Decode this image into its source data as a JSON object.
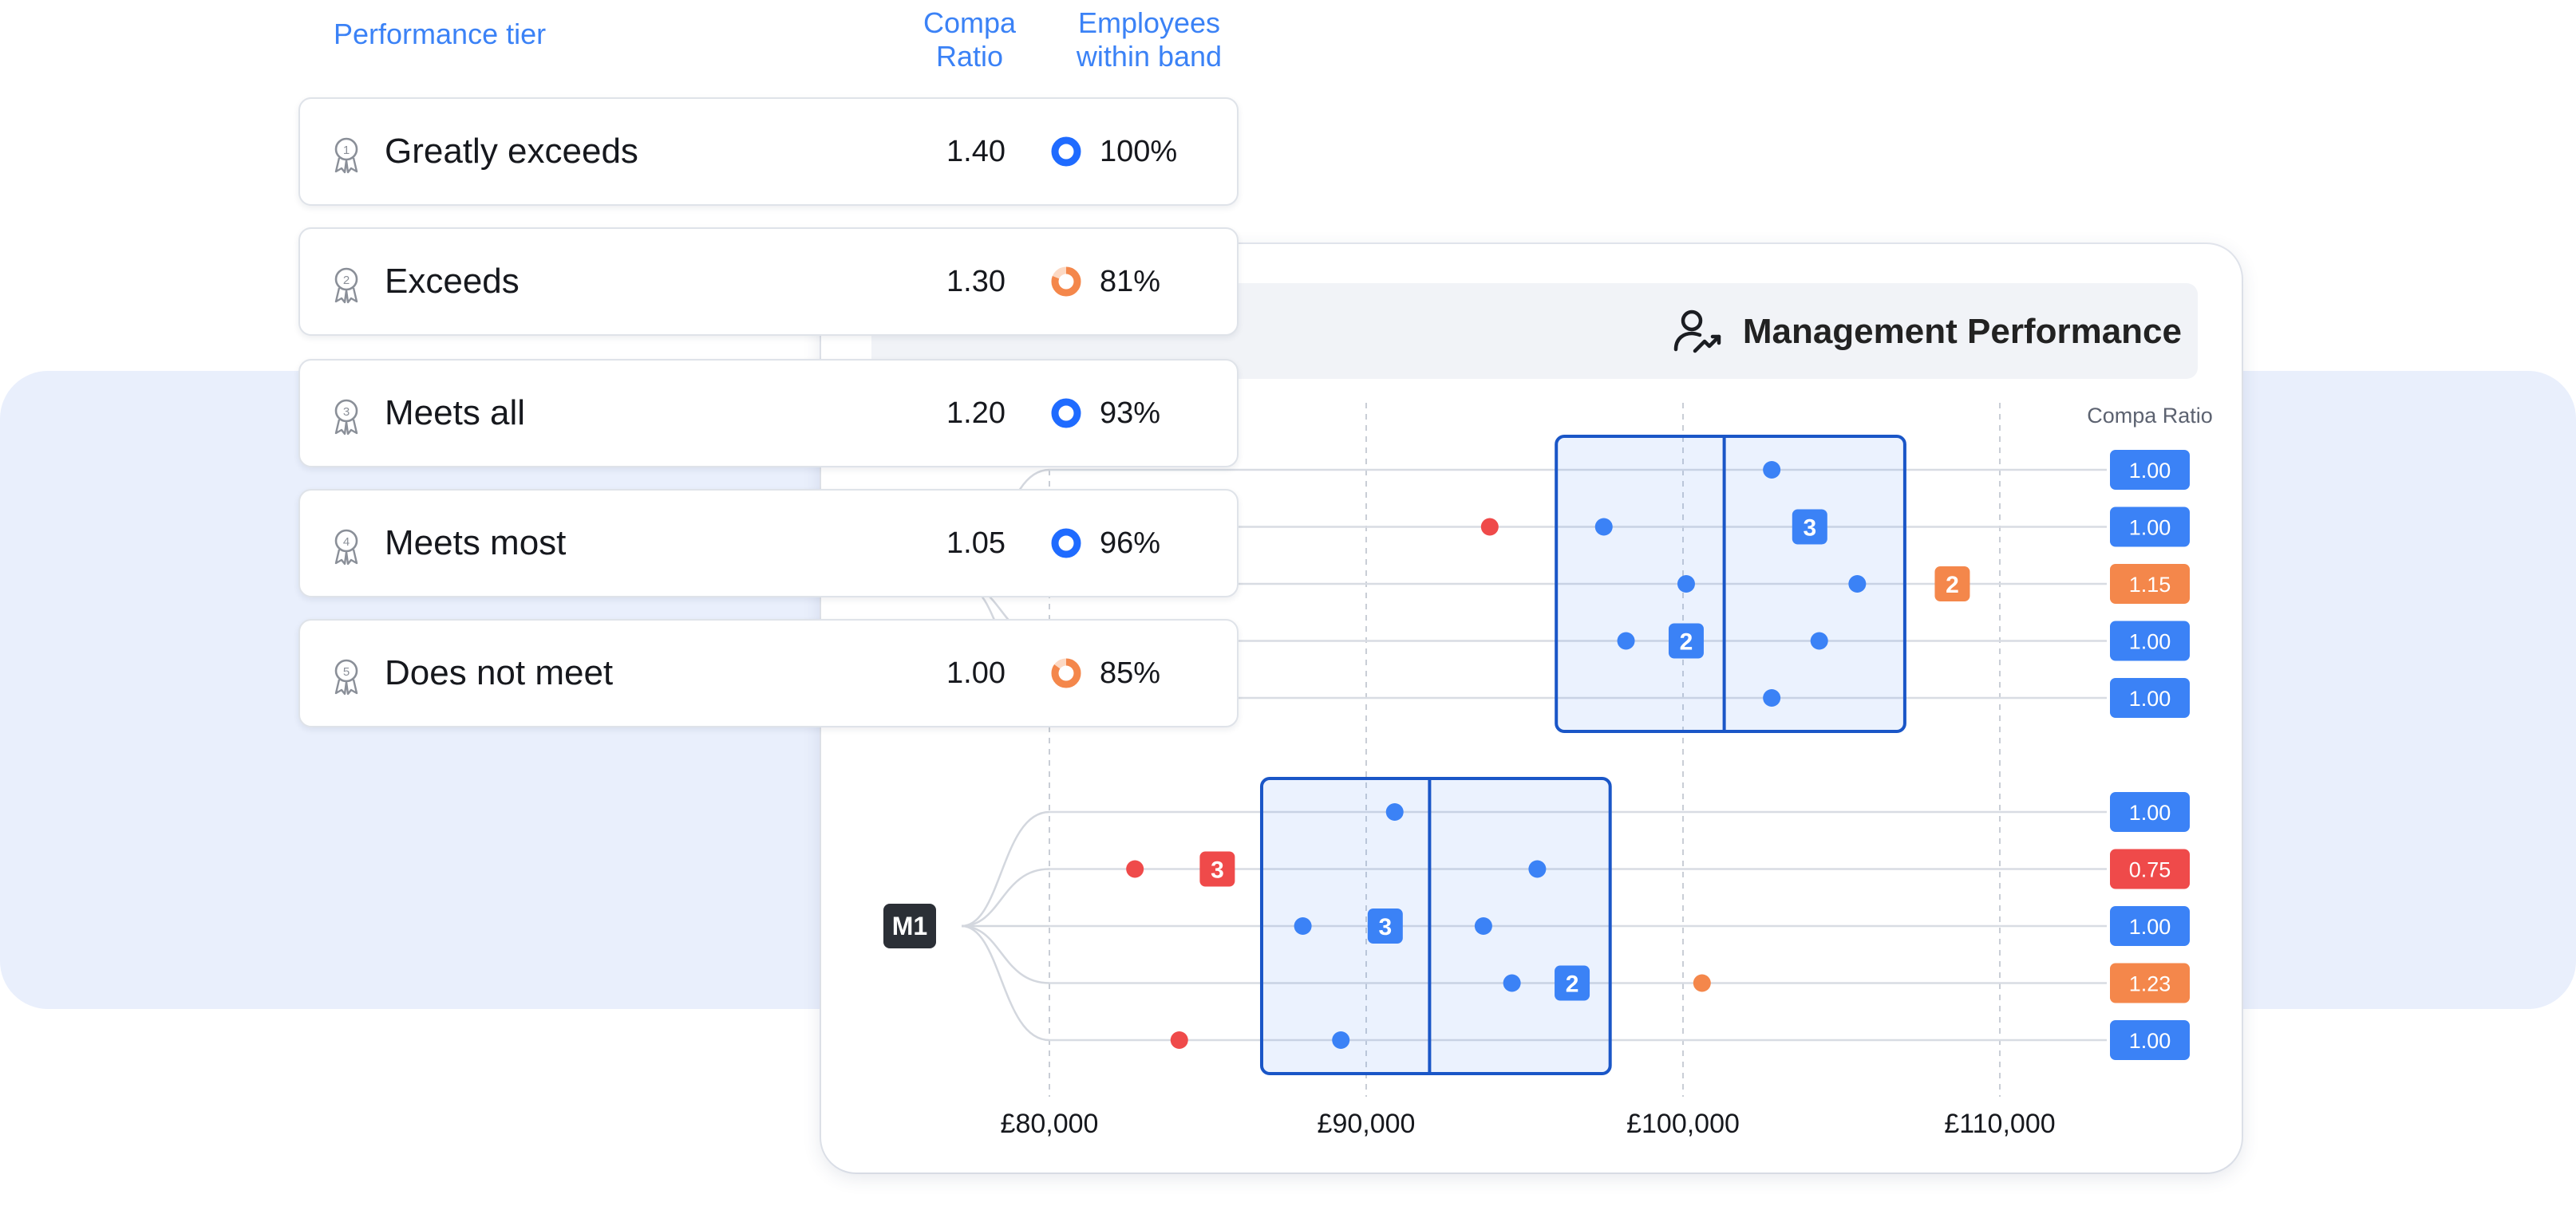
{
  "table": {
    "headers": {
      "tier": "Performance tier",
      "ratio": "Compa\nRatio",
      "employees": "Employees\nwithin band"
    },
    "rows": [
      {
        "icon": "award-1-icon",
        "label": "Greatly exceeds",
        "ratio": "1.40",
        "pct": "100%",
        "pct_value": 100,
        "ring_color": "#1f6bff",
        "ring_style": "full"
      },
      {
        "icon": "award-2-icon",
        "label": "Exceeds",
        "ratio": "1.30",
        "pct": "81%",
        "pct_value": 81,
        "ring_color": "#f4874b",
        "ring_style": "partial"
      },
      {
        "icon": "award-3-icon",
        "label": "Meets all",
        "ratio": "1.20",
        "pct": "93%",
        "pct_value": 93,
        "ring_color": "#1f6bff",
        "ring_style": "full"
      },
      {
        "icon": "award-4-icon",
        "label": "Meets most",
        "ratio": "1.05",
        "pct": "96%",
        "pct_value": 96,
        "ring_color": "#1f6bff",
        "ring_style": "full"
      },
      {
        "icon": "award-5-icon",
        "label": "Does not meet",
        "ratio": "1.00",
        "pct": "85%",
        "pct_value": 85,
        "ring_color": "#f4874b",
        "ring_style": "partial"
      }
    ],
    "row_numbers": [
      "1",
      "2",
      "3",
      "4",
      "5"
    ]
  },
  "card": {
    "title": "Management Performance",
    "icon": "user-trend-icon"
  },
  "colors": {
    "blue": "#3b82f6",
    "blue_dark": "#1a56c7",
    "red": "#ef4a4a",
    "orange": "#f4874b",
    "dark": "#2b2f36"
  },
  "chart_data": {
    "type": "scatter",
    "xlabel": "",
    "ylabel": "Compa Ratio",
    "xlim": [
      80000,
      110000
    ],
    "x_ticks": [
      80000,
      90000,
      100000,
      110000
    ],
    "x_tick_labels": [
      "£80,000",
      "£90,000",
      "£100,000",
      "£110,000"
    ],
    "groups": [
      {
        "name": "",
        "band": {
          "min": 96000,
          "mid": 101300,
          "max": 107000
        },
        "lines": [
          {
            "compa": "1.00",
            "status": "blue",
            "points": [
              {
                "x": 102800,
                "c": "blue"
              }
            ],
            "badges": []
          },
          {
            "compa": "1.00",
            "status": "blue",
            "points": [
              {
                "x": 93900,
                "c": "red"
              },
              {
                "x": 97500,
                "c": "blue"
              }
            ],
            "badges": [
              {
                "x": 104000,
                "label": "3",
                "c": "blue"
              }
            ]
          },
          {
            "compa": "1.15",
            "status": "orange",
            "points": [
              {
                "x": 100100,
                "c": "blue"
              },
              {
                "x": 105500,
                "c": "blue"
              }
            ],
            "badges": [
              {
                "x": 108500,
                "label": "2",
                "c": "orange"
              }
            ]
          },
          {
            "compa": "1.00",
            "status": "blue",
            "points": [
              {
                "x": 98200,
                "c": "blue"
              },
              {
                "x": 104300,
                "c": "blue"
              }
            ],
            "badges": [
              {
                "x": 100100,
                "label": "2",
                "c": "blue"
              }
            ]
          },
          {
            "compa": "1.00",
            "status": "blue",
            "points": [
              {
                "x": 102800,
                "c": "blue"
              }
            ],
            "badges": []
          }
        ]
      },
      {
        "name": "M1",
        "band": {
          "min": 86700,
          "mid": 92000,
          "max": 97700
        },
        "lines": [
          {
            "compa": "1.00",
            "status": "blue",
            "points": [
              {
                "x": 90900,
                "c": "blue"
              }
            ],
            "badges": []
          },
          {
            "compa": "0.75",
            "status": "red",
            "points": [
              {
                "x": 82700,
                "c": "red"
              },
              {
                "x": 95400,
                "c": "blue"
              }
            ],
            "badges": [
              {
                "x": 85300,
                "label": "3",
                "c": "red"
              }
            ]
          },
          {
            "compa": "1.00",
            "status": "blue",
            "points": [
              {
                "x": 88000,
                "c": "blue"
              },
              {
                "x": 93700,
                "c": "blue"
              }
            ],
            "badges": [
              {
                "x": 90600,
                "label": "3",
                "c": "blue"
              }
            ]
          },
          {
            "compa": "1.23",
            "status": "orange",
            "points": [
              {
                "x": 94600,
                "c": "blue"
              },
              {
                "x": 100600,
                "c": "orange"
              }
            ],
            "badges": [
              {
                "x": 96500,
                "label": "2",
                "c": "blue"
              }
            ]
          },
          {
            "compa": "1.00",
            "status": "blue",
            "points": [
              {
                "x": 84100,
                "c": "red"
              },
              {
                "x": 89200,
                "c": "blue"
              }
            ],
            "badges": []
          }
        ]
      }
    ]
  }
}
